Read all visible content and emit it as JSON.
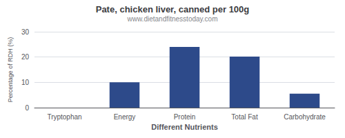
{
  "chart_data": {
    "type": "bar",
    "title": "Pate, chicken liver, canned per 100g",
    "subtitle": "www.dietandfitnesstoday.com",
    "xlabel": "Different Nutrients",
    "ylabel": "Percentage of RDH (%)",
    "categories": [
      "Tryptophan",
      "Energy",
      "Protein",
      "Total Fat",
      "Carbohydrate"
    ],
    "values": [
      0.0,
      10.0,
      24.0,
      20.2,
      5.5
    ],
    "color": "#2d4a8a",
    "ylim": [
      0,
      30
    ],
    "yticks": [
      0,
      10,
      20,
      30
    ],
    "grid": true
  }
}
